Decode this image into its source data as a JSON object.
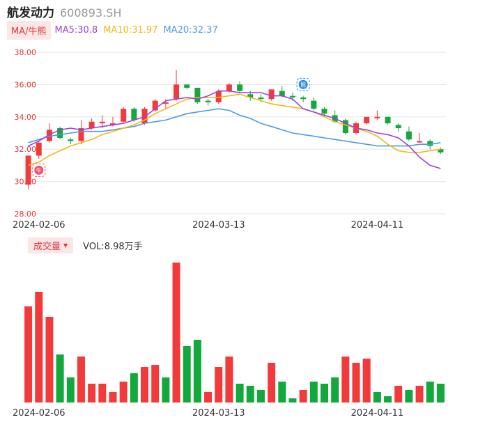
{
  "header": {
    "name": "航发动力",
    "code": "600893.SH"
  },
  "ma_legend": {
    "button": "MA/牛熊",
    "ma5": "MA5:30.8",
    "ma10": "MA10:31.97",
    "ma20": "MA20:32.37",
    "ma5_color": "#a040e0",
    "ma10_color": "#f2b816",
    "ma20_color": "#4c9be6"
  },
  "volume_legend": {
    "button": "成交量",
    "arrow": "▼",
    "vol": "VOL:8.98万手"
  },
  "badges": {
    "bull": "牛",
    "bear": "熊"
  },
  "colors": {
    "up": "#f23a3a",
    "down": "#13a83b",
    "grid": "#e6e6e6",
    "axis_text": "#e03a3a"
  },
  "chart_data": [
    {
      "type": "candlestick",
      "y_ticks": [
        "38.00",
        "36.00",
        "34.00",
        "32.00",
        "30.00",
        "28.00"
      ],
      "ylim": [
        28,
        38
      ],
      "x_tick_labels": [
        {
          "index": 1,
          "label": "2024-02-06"
        },
        {
          "index": 18,
          "label": "2024-03-13"
        },
        {
          "index": 33,
          "label": "2024-04-11"
        }
      ],
      "candles": [
        {
          "o": 29.8,
          "c": 31.6,
          "h": 31.6,
          "l": 29.5
        },
        {
          "o": 31.6,
          "c": 32.4,
          "h": 32.5,
          "l": 31.4
        },
        {
          "o": 32.5,
          "c": 33.2,
          "h": 33.6,
          "l": 32.4
        },
        {
          "o": 33.3,
          "c": 32.7,
          "h": 33.4,
          "l": 32.6
        },
        {
          "o": 32.6,
          "c": 32.5,
          "h": 32.7,
          "l": 32.3
        },
        {
          "o": 32.5,
          "c": 33.3,
          "h": 33.8,
          "l": 32.3
        },
        {
          "o": 33.3,
          "c": 33.7,
          "h": 33.9,
          "l": 33.2
        },
        {
          "o": 33.6,
          "c": 33.7,
          "h": 34.1,
          "l": 33.3
        },
        {
          "o": 33.5,
          "c": 33.6,
          "h": 34.0,
          "l": 33.4
        },
        {
          "o": 33.7,
          "c": 34.5,
          "h": 34.6,
          "l": 33.6
        },
        {
          "o": 34.5,
          "c": 33.8,
          "h": 34.6,
          "l": 33.7
        },
        {
          "o": 33.6,
          "c": 34.5,
          "h": 34.6,
          "l": 33.5
        },
        {
          "o": 34.4,
          "c": 35.0,
          "h": 35.1,
          "l": 34.3
        },
        {
          "o": 34.9,
          "c": 34.9,
          "h": 35.1,
          "l": 34.5
        },
        {
          "o": 35.1,
          "c": 36.0,
          "h": 36.9,
          "l": 35.0
        },
        {
          "o": 36.0,
          "c": 35.8,
          "h": 36.0,
          "l": 35.7
        },
        {
          "o": 35.8,
          "c": 34.9,
          "h": 35.8,
          "l": 34.8
        },
        {
          "o": 35.0,
          "c": 34.9,
          "h": 35.1,
          "l": 34.7
        },
        {
          "o": 34.9,
          "c": 35.6,
          "h": 35.7,
          "l": 34.8
        },
        {
          "o": 35.6,
          "c": 36.0,
          "h": 36.1,
          "l": 35.5
        },
        {
          "o": 36.0,
          "c": 35.6,
          "h": 36.2,
          "l": 35.5
        },
        {
          "o": 35.4,
          "c": 35.2,
          "h": 35.6,
          "l": 35.0
        },
        {
          "o": 35.2,
          "c": 35.1,
          "h": 35.4,
          "l": 34.9
        },
        {
          "o": 35.1,
          "c": 35.7,
          "h": 35.7,
          "l": 35.0
        },
        {
          "o": 35.6,
          "c": 35.3,
          "h": 35.9,
          "l": 35.2
        },
        {
          "o": 35.3,
          "c": 35.2,
          "h": 35.5,
          "l": 35.0
        },
        {
          "o": 35.2,
          "c": 35.1,
          "h": 35.3,
          "l": 34.9
        },
        {
          "o": 35.0,
          "c": 34.5,
          "h": 35.2,
          "l": 34.4
        },
        {
          "o": 34.5,
          "c": 34.2,
          "h": 34.6,
          "l": 34.0
        },
        {
          "o": 34.1,
          "c": 33.7,
          "h": 34.4,
          "l": 33.6
        },
        {
          "o": 33.8,
          "c": 33.0,
          "h": 33.9,
          "l": 32.9
        },
        {
          "o": 33.0,
          "c": 33.6,
          "h": 33.7,
          "l": 32.9
        },
        {
          "o": 33.6,
          "c": 34.0,
          "h": 34.0,
          "l": 33.5
        },
        {
          "o": 34.0,
          "c": 34.0,
          "h": 34.4,
          "l": 33.8
        },
        {
          "o": 34.0,
          "c": 33.6,
          "h": 34.0,
          "l": 33.5
        },
        {
          "o": 33.5,
          "c": 33.3,
          "h": 33.6,
          "l": 33.1
        },
        {
          "o": 33.1,
          "c": 32.6,
          "h": 33.4,
          "l": 32.5
        },
        {
          "o": 32.5,
          "c": 32.5,
          "h": 33.0,
          "l": 32.4
        },
        {
          "o": 32.5,
          "c": 32.2,
          "h": 32.6,
          "l": 32.0
        },
        {
          "o": 32.0,
          "c": 31.8,
          "h": 32.1,
          "l": 31.7
        }
      ],
      "ma5": [
        32.2,
        32.5,
        32.9,
        33.2,
        33.3,
        33.2,
        33.3,
        33.4,
        33.5,
        33.6,
        33.8,
        34.0,
        34.5,
        35.0,
        35.1,
        35.2,
        35.1,
        35.3,
        35.6,
        35.6,
        35.5,
        35.5,
        35.5,
        35.3,
        35.3,
        35.1,
        34.5,
        34.3,
        34.1,
        33.9,
        33.6,
        33.3,
        33.2,
        33.0,
        32.9,
        32.7,
        32.2,
        31.5,
        31.0,
        30.8
      ],
      "ma10": [
        31.0,
        31.2,
        31.6,
        31.9,
        32.2,
        32.4,
        32.6,
        32.9,
        33.1,
        33.3,
        33.5,
        33.8,
        34.2,
        34.5,
        34.8,
        35.1,
        35.2,
        35.2,
        35.2,
        35.3,
        35.4,
        35.2,
        35.0,
        34.8,
        34.7,
        34.6,
        34.5,
        34.3,
        34.0,
        33.7,
        33.5,
        33.3,
        33.1,
        32.8,
        32.3,
        31.9,
        31.8,
        31.8,
        31.9,
        32.0
      ],
      "ma20": [
        32.4,
        32.6,
        32.8,
        32.9,
        33.0,
        33.1,
        33.1,
        33.1,
        33.2,
        33.3,
        33.4,
        33.6,
        33.7,
        33.8,
        34.0,
        34.2,
        34.3,
        34.4,
        34.5,
        34.4,
        34.1,
        33.9,
        33.6,
        33.4,
        33.2,
        33.0,
        32.9,
        32.8,
        32.7,
        32.6,
        32.5,
        32.4,
        32.3,
        32.2,
        32.2,
        32.2,
        32.2,
        32.3,
        32.3,
        32.4
      ]
    },
    {
      "type": "bar",
      "volume": [
        46,
        53,
        41,
        23,
        12,
        22,
        9,
        9,
        5,
        10,
        14,
        17,
        18,
        12,
        67,
        27,
        30,
        5,
        17,
        22,
        9,
        8,
        6,
        19,
        10,
        2,
        6,
        10,
        9,
        12,
        22,
        19,
        21,
        5,
        3,
        8,
        6,
        8,
        10,
        9
      ],
      "up": [
        true,
        true,
        true,
        false,
        false,
        true,
        true,
        true,
        true,
        true,
        false,
        true,
        true,
        false,
        true,
        false,
        false,
        true,
        true,
        true,
        false,
        false,
        false,
        true,
        false,
        false,
        true,
        false,
        false,
        false,
        true,
        true,
        true,
        false,
        false,
        true,
        false,
        true,
        false,
        false
      ]
    }
  ]
}
